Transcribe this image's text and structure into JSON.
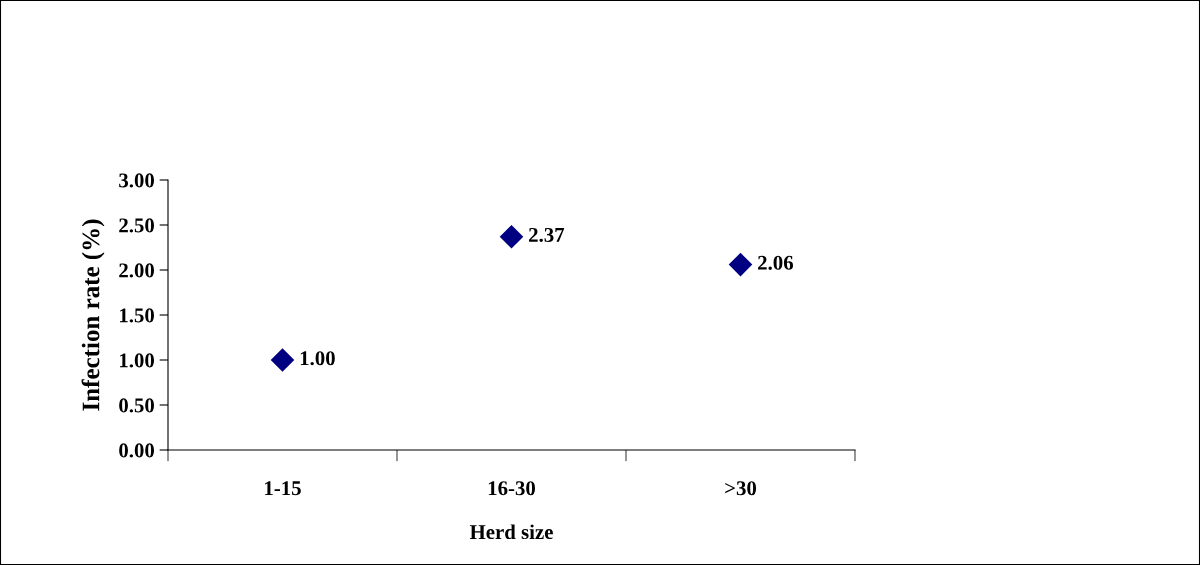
{
  "chart_data": {
    "type": "scatter",
    "xlabel": "Herd size",
    "ylabel": "Infection rate (%)",
    "categories": [
      "1-15",
      "16-30",
      ">30"
    ],
    "series": [
      {
        "color": "#000080",
        "values": [
          1.0,
          2.37,
          2.06
        ],
        "value_labels": [
          "1.00",
          "2.37",
          "2.06"
        ]
      }
    ],
    "marker": "diamond",
    "ylim": [
      0,
      3
    ],
    "yticks": [
      {
        "value": 0,
        "label": "0.00"
      },
      {
        "value": 0.5,
        "label": "0.50"
      },
      {
        "value": 1,
        "label": "1.00"
      },
      {
        "value": 1.5,
        "label": "1.50"
      },
      {
        "value": 2,
        "label": "2.00"
      },
      {
        "value": 2.5,
        "label": "2.50"
      },
      {
        "value": 3,
        "label": "3.00"
      }
    ],
    "grid": false,
    "legend": false
  }
}
